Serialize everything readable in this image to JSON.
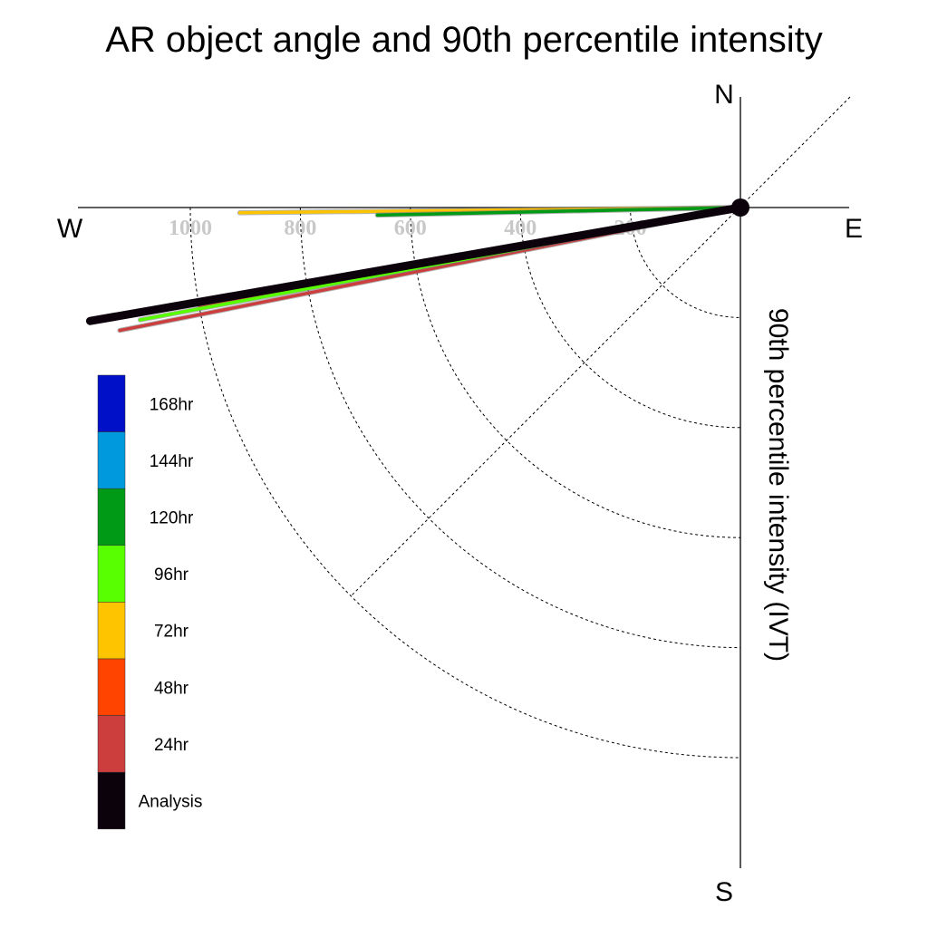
{
  "chart_data": {
    "type": "polar-vector",
    "title": "AR object angle and 90th percentile intensity",
    "radial_label": "90th percentile intensity (IVT)",
    "compass": {
      "north": "N",
      "south": "S",
      "west": "W",
      "east": "E"
    },
    "radial_ticks": [
      200,
      400,
      600,
      800,
      1000
    ],
    "radial_ticks_labeled": [
      "200",
      "400",
      "600",
      "800",
      "1000"
    ],
    "grid": true,
    "legend_position": "left",
    "series": [
      {
        "name": "168hr",
        "color": "#0010c8",
        "intensity": null,
        "angle_deg": null
      },
      {
        "name": "144hr",
        "color": "#0099dd",
        "intensity": null,
        "angle_deg": null
      },
      {
        "name": "120hr",
        "color": "#009a16",
        "intensity": 660,
        "angle_deg": 178.8
      },
      {
        "name": "96hr",
        "color": "#58ff00",
        "intensity": 1110,
        "angle_deg": 169.4
      },
      {
        "name": "72hr",
        "color": "#ffc400",
        "intensity": 910,
        "angle_deg": 179.4
      },
      {
        "name": "48hr",
        "color": "#ff4400",
        "intensity": 1000,
        "angle_deg": 169.5
      },
      {
        "name": "24hr",
        "color": "#cc3d3d",
        "intensity": 1150,
        "angle_deg": 168.8
      },
      {
        "name": "Analysis",
        "color": "#0c020c",
        "intensity": 1200,
        "angle_deg": 170.1
      }
    ]
  }
}
